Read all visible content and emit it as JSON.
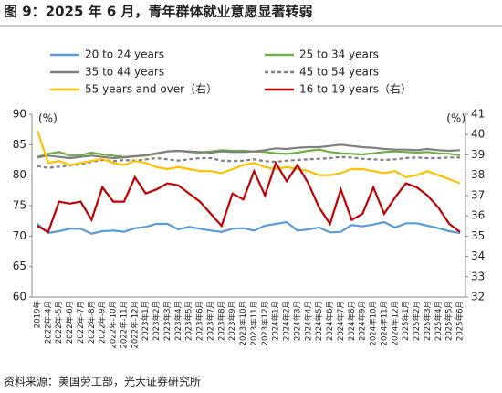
{
  "chart_data": {
    "type": "line",
    "title": "图 9：2025 年 6 月，青年群体就业意愿显著转弱",
    "source": "资料来源：美国劳工部，光大证券研究所",
    "y_label": "(%)",
    "y2_label": "(%)",
    "categories": [
      "2019年",
      "2022年-4月",
      "2022年-5月",
      "2022年-6月",
      "2022年-7月",
      "2022年-8月",
      "2022年-9月",
      "2022年-10月",
      "2022年-11月",
      "2022年-12月",
      "2023年1月",
      "2023年2月",
      "2023年3月",
      "2023年4月",
      "2023年5月",
      "2023年6月",
      "2023年7月",
      "2023年8月",
      "2023年9月",
      "2023年10月",
      "2023年11月",
      "2023年12月",
      "2024年1月",
      "2024年2月",
      "2024年3月",
      "2024年4月",
      "2024年5月",
      "2024年6月",
      "2024年7月",
      "2024年8月",
      "2024年9月",
      "2024年10月",
      "2024年11月",
      "2024年12月",
      "2025年1月",
      "2025年2月",
      "2025年3月",
      "2025年4月",
      "2025年5月",
      "2025年6月"
    ],
    "ylim": [
      60,
      90
    ],
    "yticks": [
      60,
      65,
      70,
      75,
      80,
      85,
      90
    ],
    "y2lim": [
      32,
      41
    ],
    "y2ticks": [
      32,
      33,
      34,
      35,
      36,
      37,
      38,
      39,
      40,
      41
    ],
    "series": [
      {
        "name": "20 to 24 years",
        "color": "#5b9bd5",
        "values": [
          72.0,
          70.5,
          70.8,
          71.2,
          71.2,
          70.4,
          70.8,
          70.9,
          70.7,
          71.3,
          71.5,
          72.0,
          72.0,
          71.1,
          71.5,
          71.2,
          70.9,
          70.7,
          71.2,
          71.3,
          70.9,
          71.7,
          72.0,
          72.3,
          70.9,
          71.1,
          71.4,
          70.6,
          70.7,
          71.8,
          71.6,
          71.9,
          72.3,
          71.4,
          72.1,
          72.1,
          71.7,
          71.3,
          70.8,
          70.5
        ]
      },
      {
        "name": "25 to 34 years",
        "color": "#70ad47",
        "values": [
          83.0,
          83.5,
          83.8,
          83.2,
          83.3,
          83.7,
          83.4,
          83.2,
          83.0,
          83.1,
          83.2,
          83.5,
          83.9,
          84.0,
          83.8,
          83.7,
          83.9,
          84.1,
          84.0,
          84.0,
          83.9,
          83.8,
          83.6,
          83.5,
          83.7,
          84.0,
          84.2,
          83.8,
          83.6,
          83.5,
          83.4,
          83.6,
          83.8,
          83.9,
          83.8,
          83.7,
          83.8,
          83.6,
          83.5,
          83.3
        ]
      },
      {
        "name": "35 to 44 years",
        "color": "#7f7f7f",
        "values": [
          82.9,
          83.2,
          83.0,
          82.8,
          83.0,
          83.2,
          83.0,
          82.8,
          82.9,
          83.1,
          83.3,
          83.6,
          83.9,
          84.0,
          83.9,
          83.8,
          83.7,
          83.9,
          83.8,
          83.8,
          83.9,
          84.1,
          84.4,
          84.3,
          84.5,
          84.6,
          84.6,
          84.8,
          85.0,
          84.8,
          84.6,
          84.5,
          84.3,
          84.2,
          84.2,
          84.1,
          84.3,
          84.1,
          84.0,
          84.1
        ]
      },
      {
        "name": "45 to 54 years",
        "color": "#7f7f7f",
        "dashed": true,
        "values": [
          81.5,
          81.2,
          81.4,
          81.6,
          81.8,
          82.2,
          82.5,
          82.3,
          82.5,
          82.4,
          82.6,
          82.8,
          82.6,
          82.4,
          82.6,
          82.8,
          82.8,
          82.4,
          82.3,
          82.4,
          82.6,
          82.3,
          82.2,
          82.4,
          82.5,
          82.6,
          82.7,
          82.8,
          83.0,
          82.9,
          82.7,
          82.6,
          82.5,
          82.6,
          82.8,
          82.9,
          82.8,
          82.8,
          82.9,
          82.9
        ]
      },
      {
        "name": "55 years and over（右）",
        "color": "#ffc000",
        "axis": "y2",
        "values": [
          40.2,
          38.6,
          38.7,
          38.5,
          38.6,
          38.7,
          38.8,
          38.6,
          38.5,
          38.7,
          38.6,
          38.4,
          38.3,
          38.4,
          38.3,
          38.2,
          38.2,
          38.1,
          38.3,
          38.5,
          38.6,
          38.4,
          38.3,
          38.4,
          38.3,
          38.2,
          38.0,
          38.0,
          38.1,
          38.3,
          38.3,
          38.2,
          38.1,
          38.2,
          37.9,
          38.0,
          38.2,
          38.0,
          37.8,
          37.6
        ]
      },
      {
        "name": "16 to 19 years（右）",
        "color": "#c00000",
        "axis": "y2",
        "values": [
          35.5,
          35.2,
          36.7,
          36.6,
          36.7,
          35.8,
          37.4,
          36.7,
          36.7,
          37.9,
          37.1,
          37.3,
          37.6,
          37.5,
          37.1,
          36.7,
          36.1,
          35.5,
          37.1,
          36.8,
          38.2,
          37.0,
          38.6,
          37.7,
          38.5,
          37.6,
          36.4,
          35.6,
          37.3,
          35.8,
          36.1,
          37.4,
          36.1,
          36.9,
          37.6,
          37.4,
          37.0,
          36.4,
          35.6,
          35.2
        ]
      }
    ]
  }
}
